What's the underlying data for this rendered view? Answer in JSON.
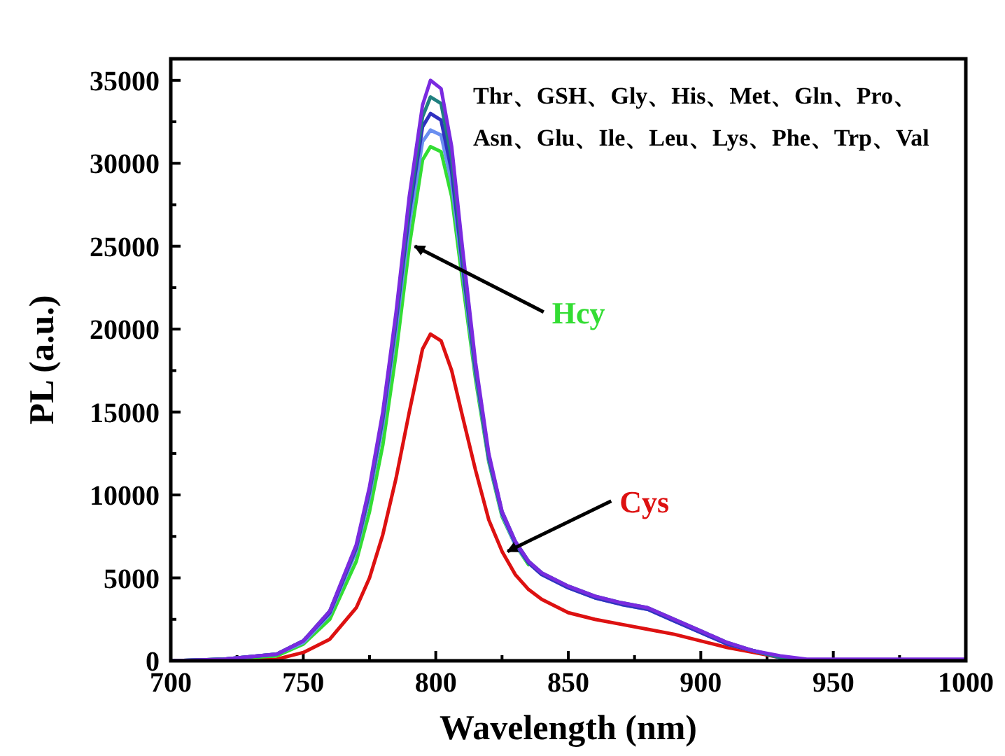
{
  "chart_data": {
    "type": "line",
    "xlabel": "Wavelength (nm)",
    "ylabel": "PL (a.u.)",
    "annotations": [
      "Thr、GSH、Gly、His、Met、Gln、Pro、Asn、Glu、Ile、Leu、Lys、Phe、Trp、Val"
    ],
    "x": [
      700,
      720,
      740,
      750,
      760,
      770,
      775,
      780,
      785,
      790,
      795,
      798,
      802,
      806,
      810,
      815,
      820,
      825,
      830,
      835,
      840,
      850,
      860,
      870,
      880,
      890,
      900,
      910,
      920,
      930,
      940,
      950,
      970,
      1000
    ],
    "series": [
      {
        "color": "#dd1111",
        "name": "Cys",
        "values": [
          0,
          0,
          100,
          500,
          1300,
          3200,
          5000,
          7600,
          11000,
          15000,
          18800,
          19700,
          19300,
          17500,
          14800,
          11500,
          8500,
          6600,
          5200,
          4300,
          3700,
          2900,
          2500,
          2200,
          1900,
          1600,
          1200,
          800,
          500,
          200,
          0,
          null,
          null,
          null
        ]
      },
      {
        "color": "#33dd33",
        "name": "Hcy",
        "values": [
          0,
          100,
          300,
          1000,
          2500,
          6000,
          9000,
          13000,
          18500,
          25000,
          30200,
          31000,
          30700,
          28000,
          23000,
          17000,
          12000,
          8700,
          7000,
          5800,
          null,
          null,
          null,
          null,
          null,
          null,
          null,
          null,
          null,
          null,
          null,
          null,
          null,
          null
        ]
      },
      {
        "color": "#6a8ff0",
        "values": [
          0,
          100,
          400,
          1100,
          2800,
          6600,
          9900,
          14200,
          19900,
          26300,
          31300,
          32000,
          31700,
          28800,
          23600,
          17300,
          12100,
          8800,
          7000,
          5900,
          5200,
          4400,
          3800,
          3400,
          3100,
          2400,
          1700,
          1000,
          600,
          200,
          0,
          null,
          null,
          null
        ]
      },
      {
        "color": "#3030c0",
        "values": [
          0,
          100,
          400,
          1200,
          2900,
          6800,
          10200,
          14600,
          20400,
          27000,
          32200,
          33000,
          32600,
          29500,
          24000,
          17500,
          12200,
          8900,
          7100,
          5900,
          5200,
          4400,
          3800,
          3400,
          3100,
          2400,
          1700,
          1000,
          600,
          200,
          0,
          null,
          null,
          null
        ]
      },
      {
        "color": "#208080",
        "values": [
          0,
          100,
          400,
          1200,
          3000,
          6900,
          10300,
          14800,
          20700,
          27500,
          32800,
          34000,
          33600,
          30300,
          24500,
          17700,
          12300,
          9000,
          7200,
          6000,
          5300,
          4500,
          3900,
          3500,
          3200,
          2500,
          1800,
          1100,
          600,
          200,
          0,
          null,
          null,
          null
        ]
      },
      {
        "color": "#7a2ae0",
        "values": [
          0,
          100,
          400,
          1200,
          3000,
          7000,
          10500,
          15000,
          21000,
          28000,
          33500,
          35000,
          34500,
          31000,
          25000,
          18000,
          12500,
          9000,
          7200,
          6000,
          5300,
          4500,
          3900,
          3500,
          3200,
          2500,
          1800,
          1100,
          600,
          300,
          100,
          100,
          100,
          100
        ]
      }
    ],
    "xlim": [
      700,
      1000
    ],
    "ylim": [
      0,
      36300
    ],
    "xticks": [
      700,
      {
        "value": 725,
        "label": null
      },
      750,
      {
        "value": 775,
        "label": null
      },
      800,
      {
        "value": 825,
        "label": null
      },
      850,
      {
        "value": 875,
        "label": null
      },
      900,
      {
        "value": 925,
        "label": null
      },
      950,
      {
        "value": 975,
        "label": null
      },
      1000
    ],
    "yticks": [
      0,
      {
        "value": 2500,
        "label": null
      },
      5000,
      {
        "value": 7500,
        "label": null
      },
      10000,
      {
        "value": 12500,
        "label": null
      },
      15000,
      {
        "value": 17500,
        "label": null
      },
      20000,
      {
        "value": 22500,
        "label": null
      },
      25000,
      {
        "value": 27500,
        "label": null
      },
      30000,
      {
        "value": 32500,
        "label": null
      },
      35000
    ],
    "grid": false,
    "legend": false,
    "marker": "none",
    "line_style": "solid"
  }
}
